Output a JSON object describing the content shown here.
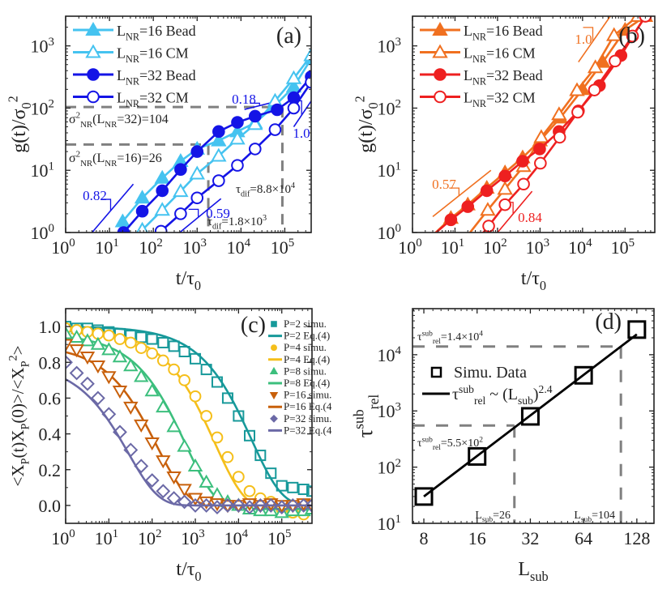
{
  "chart_data": [
    {
      "id": "a",
      "type": "line",
      "panel_label": "(a)",
      "xscale": "log",
      "yscale": "log",
      "xlim": [
        1,
        400000
      ],
      "ylim": [
        1,
        3000
      ],
      "xlabel": "t/τ0",
      "ylabel": "g(t)/σ0²",
      "xticks": [
        {
          "v": 1,
          "label": "10",
          "exp": "0"
        },
        {
          "v": 10,
          "label": "10",
          "exp": "1"
        },
        {
          "v": 100,
          "label": "10",
          "exp": "2"
        },
        {
          "v": 1000,
          "label": "10",
          "exp": "3"
        },
        {
          "v": 10000,
          "label": "10",
          "exp": "4"
        },
        {
          "v": 100000,
          "label": "10",
          "exp": "5"
        }
      ],
      "yticks": [
        {
          "v": 1,
          "label": "10",
          "exp": "0"
        },
        {
          "v": 10,
          "label": "10",
          "exp": "1"
        },
        {
          "v": 100,
          "label": "10",
          "exp": "2"
        },
        {
          "v": 1000,
          "label": "10",
          "exp": "3"
        }
      ],
      "legend_position": "top-left",
      "series": [
        {
          "name": "LNR=16 Bead",
          "legend_main": "L",
          "legend_sub": "NR",
          "legend_rest": "=16  Bead",
          "marker": "triangle-filled",
          "color": "#45c3f0",
          "x": [
            20,
            56,
            160,
            420,
            1000,
            3100,
            8300,
            21000,
            60000,
            160000,
            400000
          ],
          "y": [
            1.5,
            3.6,
            7.5,
            14,
            22,
            30,
            42,
            58,
            110,
            220,
            620
          ]
        },
        {
          "name": "LNR=16 CM",
          "legend_main": "L",
          "legend_sub": "NR",
          "legend_rest": "=16  CM",
          "marker": "triangle-open",
          "color": "#45c3f0",
          "x": [
            56,
            160,
            420,
            1000,
            3100,
            8300,
            21000,
            60000,
            160000,
            400000
          ],
          "y": [
            1.1,
            2.3,
            4.6,
            8.8,
            17,
            32,
            55,
            130,
            300,
            700
          ]
        },
        {
          "name": "LNR=32 Bead",
          "legend_main": "L",
          "legend_sub": "NR",
          "legend_rest": "=32  Bead",
          "marker": "circle-filled",
          "color": "#1414e6",
          "x": [
            21,
            56,
            160,
            420,
            1000,
            3100,
            8300,
            21000,
            67000,
            160000,
            400000
          ],
          "y": [
            1.0,
            2.2,
            4.7,
            10.3,
            20,
            42,
            59,
            74,
            94,
            147,
            320
          ]
        },
        {
          "name": "LNR=32 CM",
          "legend_main": "L",
          "legend_sub": "NR",
          "legend_rest": "=32  CM",
          "marker": "circle-open",
          "color": "#1414e6",
          "x": [
            150,
            420,
            1000,
            3100,
            8300,
            21000,
            60000,
            160000,
            400000
          ],
          "y": [
            1.05,
            2.0,
            3.6,
            6.8,
            12,
            22,
            45,
            100,
            260
          ]
        }
      ],
      "reference_lines": [
        {
          "slope_label": "0.82",
          "x0": 4,
          "y0": 1.0,
          "x1": 35,
          "y1": 6.0,
          "color": "#1414e6"
        },
        {
          "slope_label": "0.59",
          "x0": 400,
          "y0": 1.0,
          "x1": 3500,
          "y1": 3.5,
          "color": "#1414e6"
        },
        {
          "slope_label": "0.18",
          "x0": 12000,
          "y0": 95,
          "x1": 70000,
          "y1": 130,
          "color": "#1414e6"
        },
        {
          "slope_label": "1.0",
          "x0": 160000,
          "y0": 50,
          "x1": 400000,
          "y1": 130,
          "color": "#1414e6"
        }
      ],
      "annotations": {
        "sigma32": {
          "pre": "σ",
          "sup": "2",
          "sub": "NR",
          "mid": "(L",
          "sub2": "NR",
          "post": "=32)=104",
          "value": 104
        },
        "sigma16": {
          "pre": "σ",
          "sup": "2",
          "sub": "NR",
          "mid": "(L",
          "sub2": "NR",
          "post": "=16)=26",
          "value": 26
        },
        "tau_dif_large": {
          "pre": "τ",
          "sub": "dif",
          "post": "=8.8×10",
          "sup": "4",
          "value": 88000
        },
        "tau_dif_small": {
          "pre": "τ",
          "sub": "dif",
          "post": "=1.8×10",
          "sup": "3",
          "value": 1800
        }
      }
    },
    {
      "id": "b",
      "type": "line",
      "panel_label": "(b)",
      "xscale": "log",
      "yscale": "log",
      "xlim": [
        1,
        500000
      ],
      "ylim": [
        1,
        3000
      ],
      "xlabel": "t/τ0",
      "ylabel": "g(t)/σ0²",
      "xticks": [
        {
          "v": 1,
          "label": "10",
          "exp": "0"
        },
        {
          "v": 10,
          "label": "10",
          "exp": "1"
        },
        {
          "v": 100,
          "label": "10",
          "exp": "2"
        },
        {
          "v": 1000,
          "label": "10",
          "exp": "3"
        },
        {
          "v": 10000,
          "label": "10",
          "exp": "4"
        },
        {
          "v": 100000,
          "label": "10",
          "exp": "5"
        }
      ],
      "yticks": [
        {
          "v": 1,
          "label": "10",
          "exp": "0"
        },
        {
          "v": 10,
          "label": "10",
          "exp": "1"
        },
        {
          "v": 100,
          "label": "10",
          "exp": "2"
        },
        {
          "v": 1000,
          "label": "10",
          "exp": "3"
        }
      ],
      "legend_position": "top-left",
      "series": [
        {
          "name": "LNR=16 Bead",
          "legend_main": "L",
          "legend_sub": "NR",
          "legend_rest": "=16  Bead",
          "marker": "triangle-filled",
          "color": "#f07020",
          "x": [
            3,
            8,
            20,
            56,
            150,
            390,
            1000,
            3000,
            10000,
            30000,
            100000,
            300000
          ],
          "y": [
            0.9,
            1.7,
            2.8,
            5.2,
            9.2,
            16,
            30,
            70,
            200,
            550,
            1800,
            3000
          ]
        },
        {
          "name": "LNR=16 CM",
          "legend_main": "L",
          "legend_sub": "NR",
          "legend_rest": "=16  CM",
          "marker": "triangle-open",
          "color": "#f07020",
          "x": [
            20,
            59,
            150,
            410,
            1070,
            2800,
            7400,
            20000,
            55000,
            200000
          ],
          "y": [
            0.9,
            2.3,
            5.0,
            11.6,
            34,
            79,
            193,
            450,
            1480,
            3000
          ]
        },
        {
          "name": "LNR=32 Bead",
          "legend_main": "L",
          "legend_sub": "NR",
          "legend_rest": "=32  Bead",
          "marker": "circle-filled",
          "color": "#ee2020",
          "x": [
            3,
            8,
            20,
            56,
            150,
            390,
            980,
            2800,
            8000,
            25000,
            80000,
            300000
          ],
          "y": [
            0.9,
            1.6,
            2.6,
            4.7,
            8.1,
            14,
            22,
            42,
            90,
            230,
            700,
            3000
          ]
        },
        {
          "name": "LNR=32 CM",
          "legend_main": "L",
          "legend_sub": "NR",
          "legend_rest": "=32  CM",
          "marker": "circle-open",
          "color": "#ee2020",
          "x": [
            30,
            62,
            150,
            410,
            1020,
            2900,
            7700,
            19000,
            58000,
            150000,
            300000
          ],
          "y": [
            0.7,
            1.27,
            2.8,
            6.0,
            13,
            34,
            86,
            195,
            570,
            1440,
            3000
          ]
        }
      ],
      "reference_lines": [
        {
          "slope_label": "0.57",
          "x0": 3,
          "y0": 1.8,
          "x1": 70,
          "y1": 10,
          "color": "#f07020"
        },
        {
          "slope_label": "0.84",
          "x0": 100,
          "y0": 1.0,
          "x1": 650,
          "y1": 4.6,
          "color": "#ee2020"
        },
        {
          "slope_label": "1.0",
          "x0": 8000,
          "y0": 550,
          "x1": 45000,
          "y1": 3000,
          "color": "#f07020"
        }
      ]
    },
    {
      "id": "c",
      "type": "line",
      "panel_label": "(c)",
      "xscale": "log",
      "yscale": "linear",
      "xlim": [
        1,
        500000
      ],
      "ylim": [
        -0.1,
        1.1
      ],
      "xlabel": "t/τ0",
      "ylabel": "<XP(t)XP(0)>/<XP²>",
      "xticks": [
        {
          "v": 1,
          "label": "10",
          "exp": "0"
        },
        {
          "v": 10,
          "label": "10",
          "exp": "1"
        },
        {
          "v": 100,
          "label": "10",
          "exp": "2"
        },
        {
          "v": 1000,
          "label": "10",
          "exp": "3"
        },
        {
          "v": 10000,
          "label": "10",
          "exp": "4"
        },
        {
          "v": 100000,
          "label": "10",
          "exp": "5"
        }
      ],
      "yticks": [
        {
          "v": 0.0,
          "label": "0.0"
        },
        {
          "v": 0.2,
          "label": "0.2"
        },
        {
          "v": 0.4,
          "label": "0.4"
        },
        {
          "v": 0.6,
          "label": "0.6"
        },
        {
          "v": 0.8,
          "label": "0.8"
        },
        {
          "v": 1.0,
          "label": "1.0"
        }
      ],
      "legend_position": "top-right",
      "legend": [
        "P=2 simu.",
        "P=2 Eq.(4)",
        "P=4 simu.",
        "P=4 Eq.(4)",
        "P=8 simu.",
        "P=8 Eq.(4)",
        "P=16 simu.",
        "P=16 Eq.(4",
        "P=32 simu.",
        "P=32 Eq.(4"
      ],
      "x_sim": [
        1,
        1.8,
        3.2,
        5.6,
        10,
        18,
        32,
        56,
        100,
        180,
        320,
        560,
        1000,
        1800,
        3200,
        5600,
        10000,
        18000,
        32000,
        56000,
        100000,
        180000,
        320000,
        500000
      ],
      "series": [
        {
          "name": "P=2",
          "color": "#17999a",
          "marker": "square-open",
          "tau": 20000,
          "beta": 0.62,
          "plateau": 0.0,
          "y_sim": [
            1.0,
            0.99,
            0.99,
            0.98,
            0.97,
            0.96,
            0.95,
            0.94,
            0.93,
            0.91,
            0.89,
            0.86,
            0.82,
            0.76,
            0.69,
            0.6,
            0.5,
            0.39,
            0.28,
            0.18,
            0.11,
            0.1,
            0.09,
            0.08
          ]
        },
        {
          "name": "P=4",
          "color": "#f5bf1b",
          "marker": "circle-open",
          "tau": 2800,
          "beta": 0.62,
          "plateau": -0.02,
          "y_sim": [
            0.99,
            0.98,
            0.97,
            0.96,
            0.95,
            0.93,
            0.91,
            0.88,
            0.85,
            0.81,
            0.76,
            0.7,
            0.61,
            0.5,
            0.38,
            0.27,
            0.16,
            0.08,
            0.04,
            0.02,
            -0.02,
            -0.04,
            -0.05,
            0.0
          ]
        },
        {
          "name": "P=8",
          "color": "#3cbf7d",
          "marker": "triangle-open",
          "tau": 600,
          "beta": 0.62,
          "plateau": -0.02,
          "y_sim": [
            0.96,
            0.94,
            0.92,
            0.9,
            0.87,
            0.83,
            0.78,
            0.72,
            0.64,
            0.55,
            0.44,
            0.33,
            0.22,
            0.13,
            0.06,
            0.02,
            0.0,
            -0.02,
            -0.03,
            -0.03,
            -0.04,
            -0.03,
            -0.03,
            -0.02
          ]
        },
        {
          "name": "P=16",
          "color": "#c8600b",
          "marker": "triangle-down-open",
          "tau": 130,
          "beta": 0.62,
          "plateau": 0.0,
          "y_sim": [
            0.9,
            0.87,
            0.83,
            0.78,
            0.72,
            0.64,
            0.55,
            0.45,
            0.35,
            0.25,
            0.16,
            0.09,
            0.04,
            0.02,
            0.01,
            0.0,
            0.0,
            0.01,
            0.0,
            0.01,
            0.0,
            0.0,
            0.01,
            0.0
          ]
        },
        {
          "name": "P=32",
          "color": "#6b69a6",
          "marker": "diamond-open",
          "tau": 28,
          "beta": 0.62,
          "plateau": 0.0,
          "y_sim": [
            0.8,
            0.74,
            0.68,
            0.6,
            0.51,
            0.41,
            0.31,
            0.22,
            0.14,
            0.08,
            0.04,
            0.02,
            0.0,
            0.0,
            -0.01,
            0.0,
            0.0,
            -0.01,
            0.0,
            0.0,
            -0.01,
            0.0,
            0.0,
            0.0
          ]
        }
      ]
    },
    {
      "id": "d",
      "type": "scatter",
      "panel_label": "(d)",
      "xscale": "log2",
      "yscale": "log",
      "xlim": [
        6.9,
        160
      ],
      "ylim": [
        10,
        66000
      ],
      "xlabel": "Lsub",
      "ylabel": "τrel^sub",
      "xticks": [
        {
          "v": 8,
          "label": "8"
        },
        {
          "v": 16,
          "label": "16"
        },
        {
          "v": 32,
          "label": "32"
        },
        {
          "v": 64,
          "label": "64"
        },
        {
          "v": 128,
          "label": "128"
        }
      ],
      "yticks": [
        {
          "v": 10,
          "label": "10",
          "exp": "1"
        },
        {
          "v": 100,
          "label": "10",
          "exp": "2"
        },
        {
          "v": 1000,
          "label": "10",
          "exp": "3"
        },
        {
          "v": 10000,
          "label": "10",
          "exp": "4"
        }
      ],
      "legend_position": "upper-left",
      "series": [
        {
          "name": "Simu. Data",
          "marker": "square-open",
          "color": "#000000",
          "x": [
            8,
            16,
            32,
            64,
            128
          ],
          "y": [
            30,
            155,
            800,
            4300,
            28000
          ]
        },
        {
          "name": "fit",
          "legend_pre": "τ",
          "legend_sup": "sub",
          "legend_sub": "rel",
          "legend_post": " ~ (L",
          "legend_sub2": "sub",
          "legend_post2": ")",
          "legend_sup2": "2.4",
          "type": "line",
          "exponent": 2.4,
          "color": "#000000",
          "x": [
            8,
            128
          ],
          "y": [
            30,
            23000
          ]
        }
      ],
      "annotations": {
        "tau_high": {
          "pre": "τ",
          "sup": "sub",
          "sub": "rel",
          "post": "=1.4×10",
          "sup2": "4",
          "value": 14000
        },
        "tau_low": {
          "pre": "τ",
          "sup": "sub",
          "sub": "rel",
          "post": "=5.5×10",
          "sup2": "2",
          "value": 550
        },
        "L26": {
          "pre": "L",
          "sub": "sub",
          "post": "=26",
          "value": 26
        },
        "L104": {
          "pre": "L",
          "sub": "sub",
          "post": "=104",
          "value": 104
        }
      }
    }
  ],
  "labels": {
    "xlabel_main": "t/τ",
    "xlabel_sub": "0",
    "ylabel_g_main": "g(t)/σ",
    "ylabel_g_sub": "0",
    "ylabel_g_sup": "2",
    "ylabel_c": "<X(t)X(0)>/<X>",
    "ylabel_c_parts": [
      "<X",
      "P",
      "(t)X",
      "P",
      "(0)>/<X",
      "P",
      "2",
      ">"
    ],
    "xlabel_d_main": "L",
    "xlabel_d_sub": "sub",
    "ylabel_d_main": "τ",
    "ylabel_d_sup": "sub",
    "ylabel_d_sub": "rel"
  },
  "colors": {
    "axis": "#222222",
    "dash": "#808080"
  }
}
